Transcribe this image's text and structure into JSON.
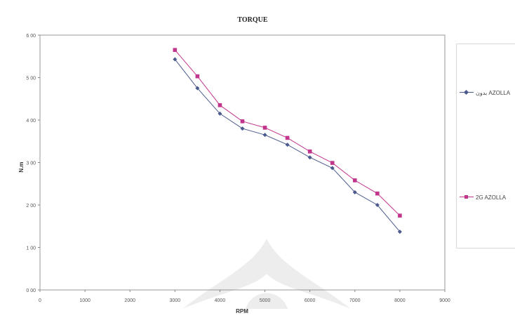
{
  "chart_data": {
    "type": "line",
    "title": "TORQUE",
    "xlabel": "RPM",
    "ylabel": "N.m",
    "xlim": [
      0,
      9000
    ],
    "ylim": [
      0,
      6
    ],
    "x_ticks": [
      "0",
      "1000",
      "2000",
      "3000",
      "4000",
      "5000",
      "6000",
      "7000",
      "8000",
      "9000"
    ],
    "y_ticks": [
      "0 00",
      "1 00",
      "2 00",
      "3 00",
      "4 00",
      "5 00",
      "6 00"
    ],
    "legend_position": "right",
    "grid": false,
    "x": [
      3000,
      3500,
      4000,
      4500,
      5000,
      5500,
      6000,
      6500,
      7000,
      7500,
      8000
    ],
    "series": [
      {
        "name": "بدون AZOLLA",
        "color": "#4a5a8c",
        "marker": "diamond",
        "values": [
          5.43,
          4.75,
          4.15,
          3.8,
          3.65,
          3.42,
          3.12,
          2.87,
          2.3,
          2.0,
          1.37
        ]
      },
      {
        "name": "2G AZOLLA",
        "color": "#c2358c",
        "marker": "square",
        "values": [
          5.65,
          5.03,
          4.35,
          3.97,
          3.82,
          3.58,
          3.26,
          2.99,
          2.58,
          2.27,
          1.75
        ]
      }
    ]
  }
}
